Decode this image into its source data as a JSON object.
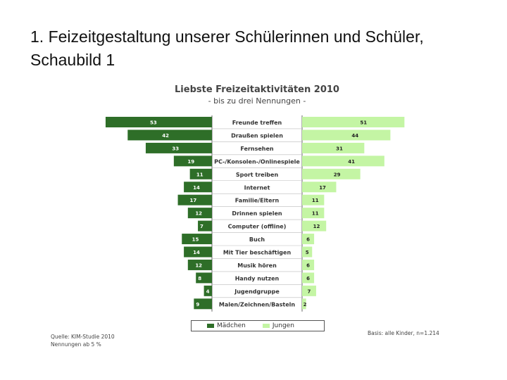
{
  "slide_title": "1. Feizeitgestaltung unserer Schülerinnen und Schüler, Schaubild 1",
  "chart_data": {
    "type": "bar",
    "orientation": "horizontal-butterfly",
    "title": "Liebste Freizeitaktivitäten 2010",
    "subtitle": "- bis zu drei Nennungen -",
    "categories": [
      "Freunde treffen",
      "Draußen spielen",
      "Fernsehen",
      "PC-/Konsolen-/Onlinespiele",
      "Sport treiben",
      "Internet",
      "Familie/Eltern",
      "Drinnen spielen",
      "Computer (offline)",
      "Buch",
      "Mit Tier beschäftigen",
      "Musik hören",
      "Handy nutzen",
      "Jugendgruppe",
      "Malen/Zeichnen/Basteln"
    ],
    "series": [
      {
        "name": "Mädchen",
        "color": "#2e6e28",
        "values": [
          53,
          42,
          33,
          19,
          11,
          14,
          17,
          12,
          7,
          15,
          14,
          12,
          8,
          4,
          9
        ]
      },
      {
        "name": "Jungen",
        "color": "#c4f5a4",
        "values": [
          51,
          44,
          31,
          41,
          29,
          17,
          11,
          11,
          12,
          6,
          5,
          6,
          6,
          7,
          2
        ]
      }
    ],
    "source": "Quelle: KIM-Studie 2010",
    "note": "Nennungen ab 5 %",
    "basis": "Basis: alle Kinder, n=1.214"
  }
}
